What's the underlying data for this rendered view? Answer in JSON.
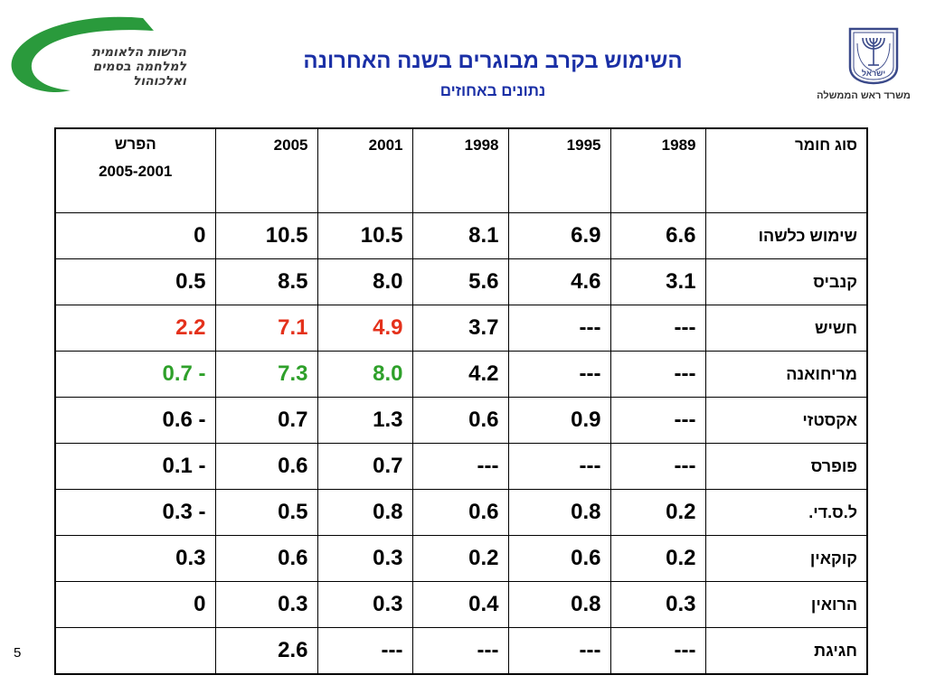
{
  "logo_left": {
    "lines": [
      "הרשות הלאומית",
      "למלחמה בסמים",
      "ואלכוהול"
    ]
  },
  "logo_right": {
    "caption": "משרד ראש הממשלה",
    "emblem_text": "ישראל"
  },
  "title": "השימוש בקרב מבוגרים בשנה האחרונה",
  "subtitle": "נתונים באחוזים",
  "table": {
    "header": {
      "diff_line1": "הפרש",
      "diff_line2": "2005-2001",
      "y2005": "2005",
      "y2001": "2001",
      "y1998": "1998",
      "y1995": "1995",
      "y1989": "1989",
      "substance": "סוג חומר"
    },
    "rows": [
      {
        "diff": "0",
        "v2005": "10.5",
        "v2001": "10.5",
        "v1998": "8.1",
        "v1995": "6.9",
        "v1989": "6.6",
        "label": "שימוש כלשהו"
      },
      {
        "diff": "0.5",
        "v2005": "8.5",
        "v2001": "8.0",
        "v1998": "5.6",
        "v1995": "4.6",
        "v1989": "3.1",
        "label": "קנביס"
      },
      {
        "diff": "2.2",
        "v2005": "7.1",
        "v2001": "4.9",
        "v1998": "3.7",
        "v1995": "---",
        "v1989": "---",
        "label": "חשיש"
      },
      {
        "diff": "0.7 -",
        "v2005": "7.3",
        "v2001": "8.0",
        "v1998": "4.2",
        "v1995": "---",
        "v1989": "---",
        "label": "מריחואנה"
      },
      {
        "diff": "0.6 -",
        "v2005": "0.7",
        "v2001": "1.3",
        "v1998": "0.6",
        "v1995": "0.9",
        "v1989": "---",
        "label": "אקסטזי"
      },
      {
        "diff": "0.1 -",
        "v2005": "0.6",
        "v2001": "0.7",
        "v1998": "---",
        "v1995": "---",
        "v1989": "---",
        "label": "פופרס"
      },
      {
        "diff": "0.3 -",
        "v2005": "0.5",
        "v2001": "0.8",
        "v1998": "0.6",
        "v1995": "0.8",
        "v1989": "0.2",
        "label": "ל.ס.די."
      },
      {
        "diff": "0.3",
        "v2005": "0.6",
        "v2001": "0.3",
        "v1998": "0.2",
        "v1995": "0.6",
        "v1989": "0.2",
        "label": "קוקאין"
      },
      {
        "diff": "0",
        "v2005": "0.3",
        "v2001": "0.3",
        "v1998": "0.4",
        "v1995": "0.8",
        "v1989": "0.3",
        "label": "הרואין"
      },
      {
        "diff": "",
        "v2005": "2.6",
        "v2001": "---",
        "v1998": "---",
        "v1995": "---",
        "v1989": "---",
        "label": "חגיגת"
      }
    ]
  },
  "highlight_colors": {
    "red": "#e4311b",
    "green": "#2ea02a",
    "title_blue": "#1a2fa6"
  },
  "page_number": "5"
}
